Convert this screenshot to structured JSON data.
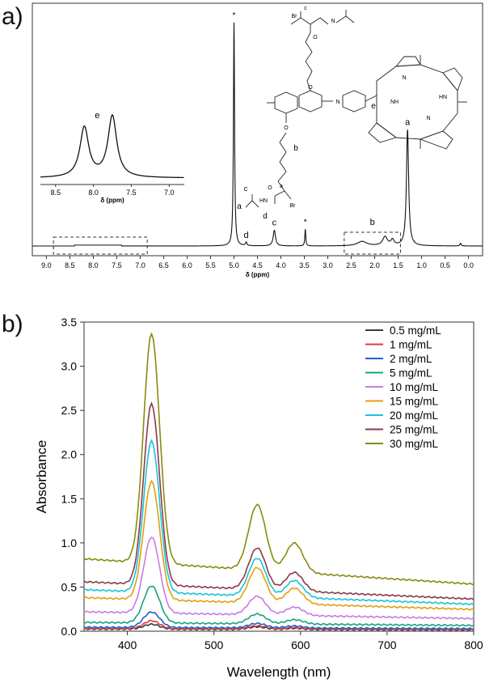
{
  "panel_labels": {
    "a": "a)",
    "b": "b)"
  },
  "chart_data": [
    {
      "type": "line",
      "panel": "a",
      "xlabel": "δ (ppm)",
      "xlim": [
        9.3,
        -0.3
      ],
      "x_ticks": [
        "9.0",
        "8.5",
        "8.0",
        "7.5",
        "7.0",
        "6.5",
        "6.0",
        "5.5",
        "5.0",
        "4.5",
        "4.0",
        "3.5",
        "3.0",
        "2.5",
        "2.0",
        "1.5",
        "1.0",
        "0.5",
        "0.0"
      ],
      "peaks": [
        {
          "shift": 5.0,
          "height": 1.0,
          "width": 0.014,
          "label": "*"
        },
        {
          "shift": 4.74,
          "height": 0.015,
          "width": 0.018,
          "label": "d"
        },
        {
          "shift": 4.14,
          "height": 0.07,
          "width": 0.03,
          "label": "c"
        },
        {
          "shift": 3.48,
          "height": 0.075,
          "width": 0.012,
          "label": "*"
        },
        {
          "shift": 2.27,
          "height": 0.02,
          "width": 0.12,
          "label": ""
        },
        {
          "shift": 1.78,
          "height": 0.04,
          "width": 0.06,
          "label": ""
        },
        {
          "shift": 1.62,
          "height": 0.025,
          "width": 0.04,
          "label": ""
        },
        {
          "shift": 1.3,
          "height": 0.52,
          "width": 0.028,
          "label": "a"
        },
        {
          "shift": 0.17,
          "height": 0.012,
          "width": 0.015,
          "label": ""
        }
      ],
      "group_labels": [
        {
          "label": "b",
          "shift": 2.05
        }
      ],
      "inset": {
        "label": "e",
        "xlabel": "δ (ppm)",
        "xlim": [
          8.7,
          6.8
        ],
        "x_ticks": [
          "8.5",
          "8.0",
          "7.5",
          "7.0"
        ],
        "peaks": [
          {
            "shift": 8.12,
            "height": 0.65
          },
          {
            "shift": 7.75,
            "height": 0.8
          }
        ]
      },
      "dashed_boxes": [
        {
          "from_shift": 8.85,
          "to_shift": 6.85
        },
        {
          "from_shift": 2.65,
          "to_shift": 1.45
        }
      ],
      "structure_labels": [
        "a",
        "c",
        "d",
        "b",
        "e",
        "Br",
        "Br",
        "O",
        "O",
        "O",
        "O",
        "N",
        "N",
        "NH",
        "HN",
        "N",
        "HN",
        "NH",
        "N",
        "a",
        "c"
      ]
    },
    {
      "type": "line",
      "panel": "b",
      "xlabel": "Wavelength (nm)",
      "ylabel": "Absorbance",
      "xlim": [
        350,
        800
      ],
      "ylim": [
        0,
        3.5
      ],
      "x_ticks": [
        "400",
        "500",
        "600",
        "700",
        "800"
      ],
      "y_ticks": [
        "0.0",
        "0.5",
        "1.0",
        "1.5",
        "2.0",
        "2.5",
        "3.0",
        "3.5"
      ],
      "legend_position": "top-right",
      "series": [
        {
          "name": "0.5 mg/mL",
          "color": "#3a3a3a",
          "soret": 0.08,
          "q": 0.028,
          "base": 0.025
        },
        {
          "name": "1 mg/mL",
          "color": "#e03a3a",
          "soret": 0.12,
          "q": 0.035,
          "base": 0.03
        },
        {
          "name": "2 mg/mL",
          "color": "#1f5fd0",
          "soret": 0.22,
          "q": 0.05,
          "base": 0.045
        },
        {
          "name": "5 mg/mL",
          "color": "#16a37f",
          "soret": 0.52,
          "q": 0.11,
          "base": 0.1
        },
        {
          "name": "10 mg/mL",
          "color": "#c77be3",
          "soret": 1.08,
          "q": 0.21,
          "base": 0.22
        },
        {
          "name": "15 mg/mL",
          "color": "#e0a010",
          "soret": 1.72,
          "q": 0.4,
          "base": 0.38
        },
        {
          "name": "20 mg/mL",
          "color": "#19c3d9",
          "soret": 2.18,
          "q": 0.43,
          "base": 0.47
        },
        {
          "name": "25 mg/mL",
          "color": "#8b3a46",
          "soret": 2.61,
          "q": 0.47,
          "base": 0.56
        },
        {
          "name": "30 mg/mL",
          "color": "#8a8a10",
          "soret": 3.42,
          "q": 0.74,
          "base": 0.82
        }
      ]
    }
  ]
}
